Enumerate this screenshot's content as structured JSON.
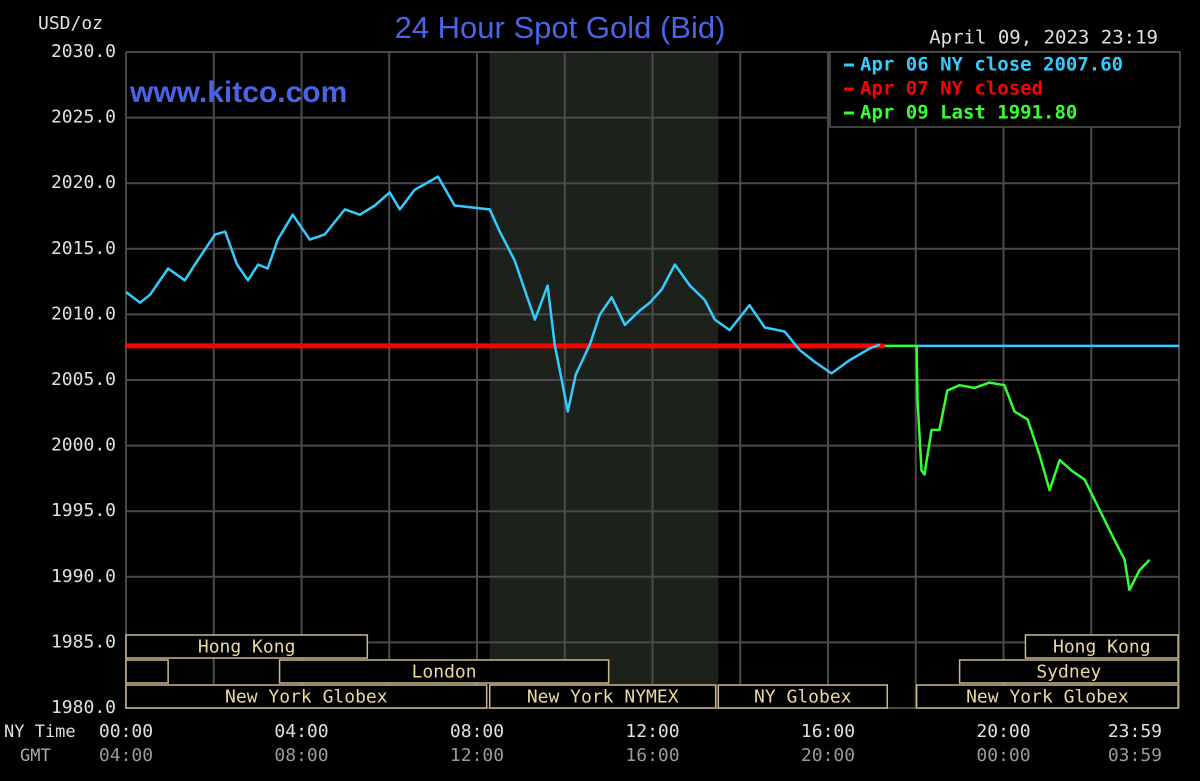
{
  "chart_data": {
    "type": "line",
    "title": "24 Hour Spot Gold (Bid)",
    "timestamp": "April 09, 2023 23:19",
    "watermark": "www.kitco.com",
    "ylabel": "USD/oz",
    "xlabel": "NY Time",
    "x2label": "GMT",
    "xlim": [
      0,
      24
    ],
    "ylim": [
      1980,
      2030
    ],
    "yticks": [
      {
        "value": 1980,
        "label": "1980.0"
      },
      {
        "value": 1985,
        "label": "1985.0"
      },
      {
        "value": 1990,
        "label": "1990.0"
      },
      {
        "value": 1995,
        "label": "1995.0"
      },
      {
        "value": 2000,
        "label": "2000.0"
      },
      {
        "value": 2005,
        "label": "2005.0"
      },
      {
        "value": 2010,
        "label": "2010.0"
      },
      {
        "value": 2015,
        "label": "2015.0"
      },
      {
        "value": 2020,
        "label": "2020.0"
      },
      {
        "value": 2025,
        "label": "2025.0"
      },
      {
        "value": 2030,
        "label": "2030.0"
      }
    ],
    "xticks": [
      {
        "value": 0,
        "label": "00:00"
      },
      {
        "value": 4,
        "label": "04:00"
      },
      {
        "value": 8,
        "label": "08:00"
      },
      {
        "value": 12,
        "label": "12:00"
      },
      {
        "value": 16,
        "label": "16:00"
      },
      {
        "value": 20,
        "label": "20:00"
      },
      {
        "value": 24,
        "label": "23:59"
      }
    ],
    "x2ticks": [
      {
        "value": 0,
        "label": "04:00"
      },
      {
        "value": 4,
        "label": "08:00"
      },
      {
        "value": 8,
        "label": "12:00"
      },
      {
        "value": 12,
        "label": "16:00"
      },
      {
        "value": 16,
        "label": "20:00"
      },
      {
        "value": 20,
        "label": "00:00"
      },
      {
        "value": 24,
        "label": "03:59"
      }
    ],
    "x_minor_ticks": [
      2,
      6,
      10,
      14,
      18,
      22
    ],
    "grid": true,
    "shaded_range": [
      8.29,
      13.5
    ],
    "legend": "upper right",
    "series": [
      {
        "name": "Apr 06 NY close 2007.60",
        "color": "#33ccff",
        "x": [
          0,
          0.32,
          0.55,
          0.96,
          1.34,
          1.57,
          2.03,
          2.26,
          2.53,
          2.78,
          3.01,
          3.23,
          3.46,
          3.8,
          4.19,
          4.53,
          4.99,
          5.33,
          5.67,
          6.01,
          6.24,
          6.58,
          7.11,
          7.49,
          8.02,
          8.29,
          8.52,
          8.86,
          9.32,
          9.61,
          9.77,
          9.93,
          10.07,
          10.25,
          10.57,
          10.8,
          11.07,
          11.37,
          11.71,
          11.94,
          12.21,
          12.51,
          12.85,
          13.19,
          13.42,
          13.76,
          14.21,
          14.56,
          15.01,
          15.35,
          15.69,
          16.08,
          16.49,
          16.95,
          17.18,
          null,
          18.02,
          24
        ],
        "values": [
          2011.7,
          2010.9,
          2011.5,
          2013.5,
          2012.6,
          2013.8,
          2016.1,
          2016.3,
          2013.8,
          2012.6,
          2013.8,
          2013.5,
          2015.7,
          2017.6,
          2015.7,
          2016.1,
          2018.0,
          2017.6,
          2018.3,
          2019.3,
          2018.0,
          2019.5,
          2020.5,
          2018.3,
          2018.1,
          2018.0,
          2016.3,
          2014.1,
          2009.6,
          2012.2,
          2007.7,
          2005.0,
          2002.6,
          2005.4,
          2007.7,
          2010.0,
          2011.3,
          2009.2,
          2010.3,
          2010.9,
          2011.9,
          2013.8,
          2012.2,
          2011.1,
          2009.6,
          2008.8,
          2010.7,
          2009.0,
          2008.7,
          2007.3,
          2006.4,
          2005.5,
          2006.5,
          2007.4,
          2007.7,
          null,
          2007.6,
          2007.6
        ]
      },
      {
        "name": "Apr 07 NY closed",
        "color": "#ff0000",
        "x": [
          0,
          17.29
        ],
        "values": [
          2007.6,
          2007.6
        ]
      },
      {
        "name": "Apr 09 Last 1991.80",
        "color": "#33ff33",
        "x": [
          17.29,
          18.02,
          18.04,
          18.13,
          18.2,
          18.36,
          18.54,
          18.72,
          19.0,
          19.34,
          19.68,
          20.02,
          20.25,
          20.55,
          20.82,
          21.05,
          21.28,
          21.55,
          21.85,
          22.19,
          22.53,
          22.76,
          22.87,
          23.1,
          23.33
        ],
        "values": [
          2007.6,
          2007.6,
          2003.5,
          1998.1,
          1997.8,
          2001.2,
          2001.2,
          2004.2,
          2004.6,
          2004.4,
          2004.8,
          2004.6,
          2002.6,
          2002.0,
          1999.3,
          1996.6,
          1998.9,
          1998.1,
          1997.4,
          1995.1,
          1992.8,
          1991.3,
          1989.0,
          1990.5,
          1991.3
        ]
      }
    ],
    "sessions": [
      {
        "label": "Hong Kong",
        "start": 0,
        "end": 5.5,
        "row": 0
      },
      {
        "label": "Hong Kong",
        "start": 20.5,
        "end": 23.98,
        "row": 0
      },
      {
        "start": 0,
        "end": 0.96,
        "row": 1
      },
      {
        "label": "London",
        "start": 3.5,
        "end": 11,
        "row": 1
      },
      {
        "label": "Sydney",
        "start": 19,
        "end": 23.98,
        "row": 1
      },
      {
        "label": "New York Globex",
        "start": 0,
        "end": 8.22,
        "row": 2
      },
      {
        "label": "New York NYMEX",
        "start": 8.29,
        "end": 13.44,
        "row": 2
      },
      {
        "label": "NY Globex",
        "start": 13.5,
        "end": 17.35,
        "row": 2
      },
      {
        "label": "New York Globex",
        "start": 18.02,
        "end": 23.98,
        "row": 2
      }
    ]
  }
}
